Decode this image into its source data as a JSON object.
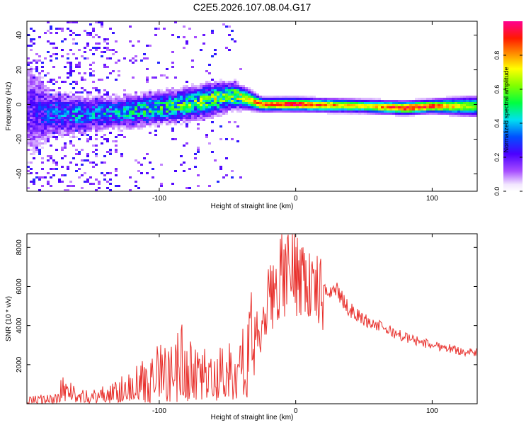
{
  "title": "C2E5.2026.107.08.04.G17",
  "colors": {
    "snr_line": "#e8302c",
    "axis": "#000000"
  },
  "chart_data": [
    {
      "type": "heatmap",
      "name": "spectrogram",
      "xlabel": "Height of straight line (km)",
      "ylabel": "Frequency (Hz)",
      "xlim": [
        -197,
        133
      ],
      "ylim": [
        -50,
        48
      ],
      "x_ticks": [
        -100,
        0,
        100
      ],
      "y_ticks": [
        -40,
        -20,
        0,
        20,
        40
      ],
      "colorbar": {
        "label": "Normalized spectral amplitude",
        "range": [
          0,
          1
        ],
        "ticks": [
          0.0,
          0.2,
          0.4,
          0.6,
          0.8
        ]
      },
      "ridge": [
        {
          "x": -197,
          "f": -4,
          "amp": 0.15,
          "spread": 18
        },
        {
          "x": -180,
          "f": -5,
          "amp": 0.3,
          "spread": 7
        },
        {
          "x": -160,
          "f": -6,
          "amp": 0.35,
          "spread": 6
        },
        {
          "x": -140,
          "f": -5,
          "amp": 0.35,
          "spread": 5
        },
        {
          "x": -120,
          "f": -4,
          "amp": 0.4,
          "spread": 5
        },
        {
          "x": -100,
          "f": -2,
          "amp": 0.45,
          "spread": 5
        },
        {
          "x": -80,
          "f": 0,
          "amp": 0.5,
          "spread": 5
        },
        {
          "x": -60,
          "f": 3,
          "amp": 0.55,
          "spread": 5
        },
        {
          "x": -45,
          "f": 5,
          "amp": 0.6,
          "spread": 4
        },
        {
          "x": -35,
          "f": 3,
          "amp": 0.7,
          "spread": 3
        },
        {
          "x": -25,
          "f": 0,
          "amp": 0.9,
          "spread": 2
        },
        {
          "x": 0,
          "f": 0,
          "amp": 0.95,
          "spread": 2
        },
        {
          "x": 50,
          "f": -1,
          "amp": 0.7,
          "spread": 2
        },
        {
          "x": 80,
          "f": -2,
          "amp": 0.95,
          "spread": 2
        },
        {
          "x": 100,
          "f": -1,
          "amp": 0.9,
          "spread": 2
        },
        {
          "x": 133,
          "f": -1,
          "amp": 0.6,
          "spread": 3
        }
      ]
    },
    {
      "type": "line",
      "name": "snr",
      "xlabel": "Height of straight line (km)",
      "ylabel": "SNR (10 * v/v)",
      "xlim": [
        -197,
        133
      ],
      "ylim": [
        0,
        8700
      ],
      "x_ticks": [
        -100,
        0,
        100
      ],
      "y_ticks": [
        2000,
        4000,
        6000,
        8000
      ],
      "series": [
        {
          "name": "SNR",
          "x": [
            -197,
            -185,
            -175,
            -170,
            -165,
            -160,
            -150,
            -140,
            -130,
            -120,
            -110,
            -100,
            -90,
            -85,
            -80,
            -70,
            -60,
            -50,
            -40,
            -35,
            -30,
            -25,
            -20,
            -15,
            -10,
            -5,
            0,
            5,
            10,
            15,
            20,
            25,
            30,
            35,
            40,
            50,
            60,
            70,
            80,
            90,
            100,
            110,
            120,
            133
          ],
          "values": [
            200,
            250,
            300,
            900,
            600,
            350,
            400,
            500,
            700,
            900,
            1300,
            1600,
            1800,
            2300,
            1800,
            1500,
            1600,
            1700,
            2100,
            2400,
            3800,
            3200,
            5300,
            5900,
            6500,
            6700,
            6900,
            6800,
            6000,
            5700,
            5600,
            5800,
            5900,
            5200,
            4800,
            4300,
            4000,
            3700,
            3400,
            3200,
            3000,
            2900,
            2700,
            2600
          ]
        }
      ]
    }
  ]
}
